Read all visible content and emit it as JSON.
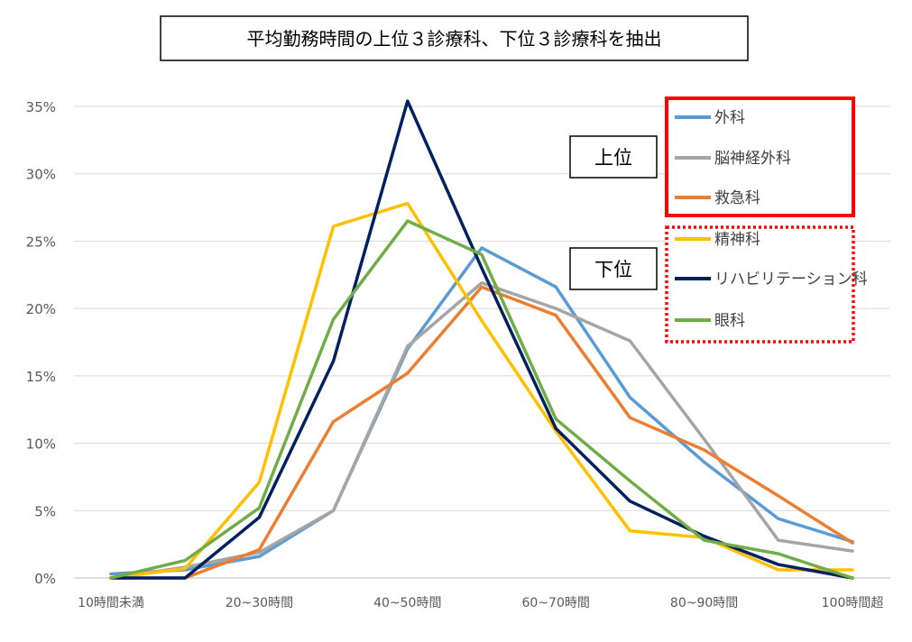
{
  "chart_data": {
    "type": "line",
    "title": "平均勤務時間の上位３診療科、下位３診療科を抽出",
    "x_tick_labels": [
      "10時間未満",
      "",
      "20~30時間",
      "",
      "40~50時間",
      "",
      "60~70時間",
      "",
      "80~90時間",
      "",
      "100時間超"
    ],
    "y_tick_labels": [
      "0%",
      "5%",
      "10%",
      "15%",
      "20%",
      "25%",
      "30%",
      "35%"
    ],
    "ylim": [
      0,
      35
    ],
    "grid": true,
    "group_labels": {
      "upper": "上位",
      "lower": "下位"
    },
    "series": [
      {
        "name": "外科",
        "color": "#5b9bd5",
        "group": "upper",
        "values": [
          0.3,
          0.6,
          1.6,
          5.0,
          17.0,
          24.5,
          21.6,
          13.4,
          8.6,
          4.4,
          2.7
        ]
      },
      {
        "name": "脳神経外科",
        "color": "#a5a5a5",
        "group": "upper",
        "values": [
          0.0,
          0.8,
          1.9,
          5.0,
          17.2,
          21.9,
          20.0,
          17.6,
          10.3,
          2.8,
          2.0
        ]
      },
      {
        "name": "救急科",
        "color": "#ed7d31",
        "group": "upper",
        "values": [
          0.0,
          0.0,
          2.1,
          11.6,
          15.2,
          21.6,
          19.5,
          11.9,
          9.5,
          6.1,
          2.6
        ]
      },
      {
        "name": "精神科",
        "color": "#ffc000",
        "group": "lower",
        "values": [
          0.0,
          0.7,
          7.1,
          26.1,
          27.8,
          19.1,
          10.9,
          3.5,
          3.0,
          0.6,
          0.6
        ]
      },
      {
        "name": "リハビリテーション科",
        "color": "#002060",
        "group": "lower",
        "values": [
          0.0,
          0.0,
          4.5,
          16.1,
          35.4,
          23.0,
          11.1,
          5.7,
          3.1,
          1.0,
          0.0
        ]
      },
      {
        "name": "眼科",
        "color": "#70ad47",
        "group": "lower",
        "values": [
          0.0,
          1.3,
          5.2,
          19.2,
          26.5,
          24.0,
          11.8,
          7.2,
          2.8,
          1.8,
          0.0
        ]
      }
    ]
  }
}
